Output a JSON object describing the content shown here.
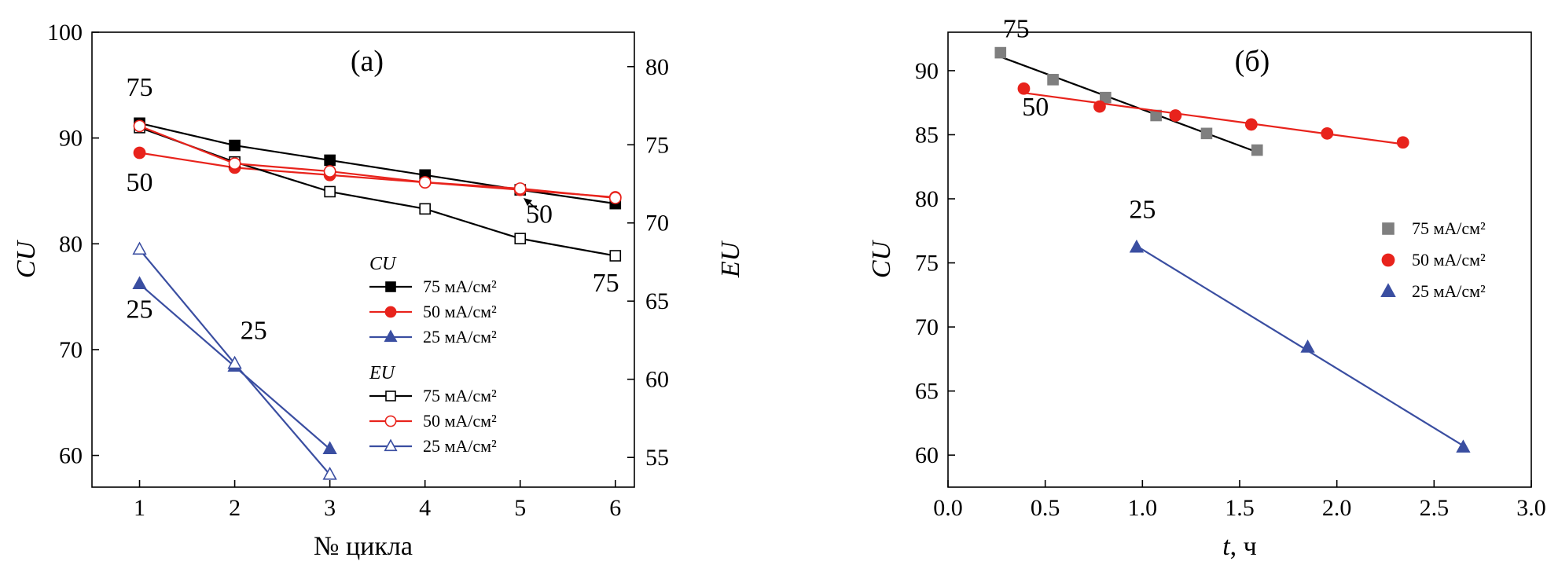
{
  "chart_data": [
    {
      "type": "line",
      "panel_label": "(a)",
      "xlabel": "№ цикла",
      "ylabel": "CU",
      "y2label": "EU",
      "x_ticks": [
        1,
        2,
        3,
        4,
        5,
        6
      ],
      "xlim": [
        0.5,
        6.2
      ],
      "ylim": [
        57,
        100
      ],
      "y_ticks": [
        60,
        70,
        80,
        90,
        100
      ],
      "y2lim": [
        53.1,
        82.2
      ],
      "y2_ticks": [
        55,
        60,
        65,
        70,
        75,
        80
      ],
      "legend_group_cu": "CU",
      "legend_group_eu": "EU",
      "series": [
        {
          "group": "CU",
          "name": "75 мА/см²",
          "axis": "left",
          "color": "#000000",
          "marker": "square",
          "filled": true,
          "x": [
            1,
            2,
            3,
            4,
            5,
            6
          ],
          "values": [
            91.4,
            89.3,
            87.9,
            86.5,
            85.1,
            83.8
          ]
        },
        {
          "group": "CU",
          "name": "50 мА/см²",
          "axis": "left",
          "color": "#e8231c",
          "marker": "circle",
          "filled": true,
          "x": [
            1,
            2,
            3,
            4,
            5,
            6
          ],
          "values": [
            88.6,
            87.2,
            86.5,
            85.8,
            85.1,
            84.4
          ]
        },
        {
          "group": "CU",
          "name": "25 мА/см²",
          "axis": "left",
          "color": "#3a4ea1",
          "marker": "triangle",
          "filled": true,
          "x": [
            1,
            2,
            3
          ],
          "values": [
            76.2,
            68.4,
            60.6
          ]
        },
        {
          "group": "EU",
          "name": "75 мА/см²",
          "axis": "right",
          "color": "#000000",
          "marker": "square",
          "filled": false,
          "x": [
            1,
            2,
            3,
            4,
            5,
            6
          ],
          "values": [
            76.1,
            73.9,
            72.0,
            70.9,
            69.0,
            67.9
          ]
        },
        {
          "group": "EU",
          "name": "50 мА/см²",
          "axis": "right",
          "color": "#e8231c",
          "marker": "circle",
          "filled": false,
          "x": [
            1,
            2,
            3,
            4,
            5,
            6
          ],
          "values": [
            76.2,
            73.8,
            73.3,
            72.6,
            72.2,
            71.6
          ]
        },
        {
          "group": "EU",
          "name": "25 мА/см²",
          "axis": "right",
          "color": "#3a4ea1",
          "marker": "triangle",
          "filled": false,
          "x": [
            1,
            2,
            3
          ],
          "values": [
            68.3,
            61.0,
            53.9
          ]
        }
      ],
      "annotations": [
        {
          "text": "75",
          "near_x": 1,
          "near_y": 94
        },
        {
          "text": "50",
          "near_x": 1,
          "near_y": 85
        },
        {
          "text": "25",
          "near_x": 1,
          "near_y": 73
        },
        {
          "text": "25",
          "near_x": 2.2,
          "near_y": 71
        },
        {
          "text": "50",
          "near_x": 5.2,
          "near_y": 82
        },
        {
          "text": "75",
          "near_x": 5.9,
          "near_y": 75.5
        }
      ],
      "grid": false,
      "legend_position": "center-right"
    },
    {
      "type": "scatter",
      "panel_label": "(б)",
      "xlabel_italic": "t",
      "xlabel_unit": ", ч",
      "ylabel": "CU",
      "xlim": [
        0,
        3.0
      ],
      "x_ticks": [
        0.0,
        0.5,
        1.0,
        1.5,
        2.0,
        2.5,
        3.0
      ],
      "ylim": [
        57.5,
        93
      ],
      "y_ticks": [
        60,
        65,
        70,
        75,
        80,
        85,
        90
      ],
      "series": [
        {
          "name": "75 мА/см²",
          "color": "#7f7f7f",
          "fit_color": "#000000",
          "marker": "square",
          "x": [
            0.27,
            0.54,
            0.81,
            1.07,
            1.33,
            1.59
          ],
          "values": [
            91.4,
            89.3,
            87.9,
            86.5,
            85.1,
            83.8
          ]
        },
        {
          "name": "50 мА/см²",
          "color": "#e8231c",
          "fit_color": "#e8231c",
          "marker": "circle",
          "x": [
            0.39,
            0.78,
            1.17,
            1.56,
            1.95,
            2.34
          ],
          "values": [
            88.6,
            87.2,
            86.5,
            85.8,
            85.1,
            84.4
          ]
        },
        {
          "name": "25 мА/см²",
          "color": "#3a4ea1",
          "fit_color": "#3a4ea1",
          "marker": "triangle",
          "x": [
            0.97,
            1.85,
            2.65
          ],
          "values": [
            76.2,
            68.4,
            60.6
          ]
        }
      ],
      "annotations": [
        {
          "text": "75",
          "near_x": 0.35,
          "near_y": 92.6
        },
        {
          "text": "50",
          "near_x": 0.45,
          "near_y": 86.5
        },
        {
          "text": "25",
          "near_x": 1.0,
          "near_y": 78.5
        }
      ],
      "grid": false,
      "legend_position": "right"
    }
  ]
}
